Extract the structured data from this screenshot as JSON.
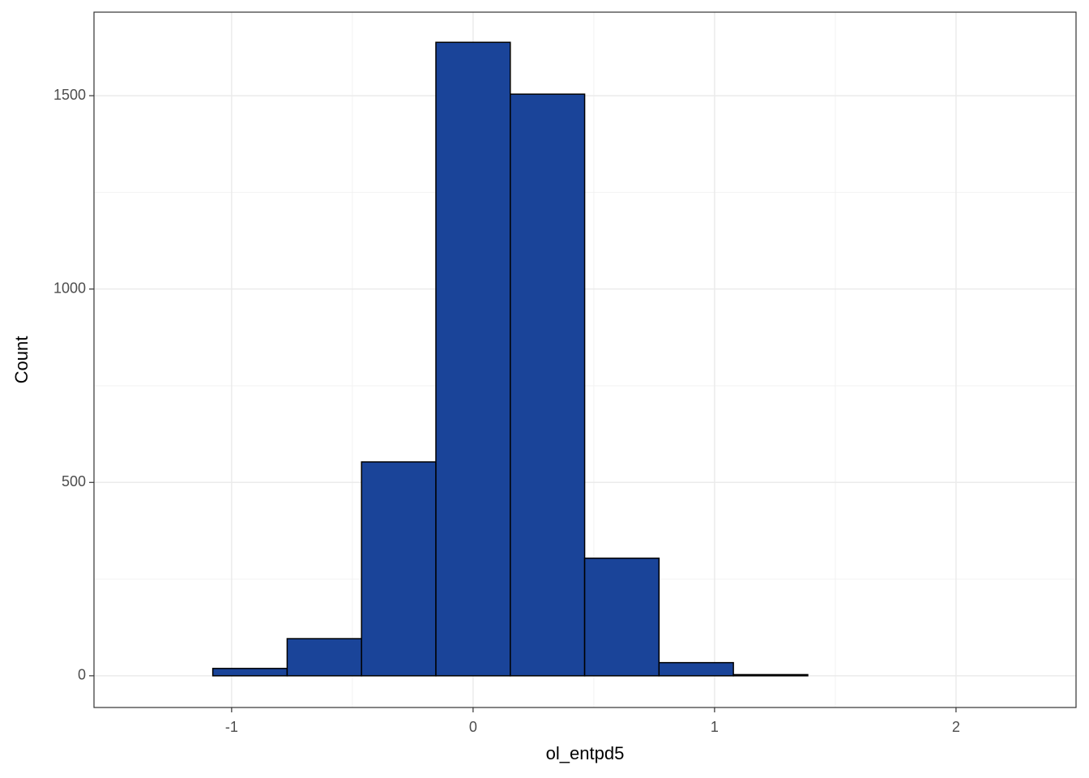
{
  "chart_data": {
    "type": "histogram",
    "x_label": "ol_entpd5",
    "y_label": "Count",
    "bins": [
      -1.386,
      -1.078,
      -0.77,
      -0.462,
      -0.154,
      0.154,
      0.462,
      0.77,
      1.078,
      1.386,
      1.694,
      2.002,
      2.31
    ],
    "values": [
      0,
      19,
      96,
      553,
      1638,
      1504,
      304,
      34,
      3,
      0,
      0,
      0
    ],
    "color": "#1a4499",
    "edge_color": "#000000",
    "xlim": [
      -1.57,
      2.497
    ],
    "ylim": [
      -82,
      1716
    ],
    "xticks": [
      -1,
      0,
      1,
      2
    ],
    "yticks": [
      0,
      500,
      1000,
      1500
    ],
    "xminor": [
      -0.5,
      0.5,
      1.5
    ],
    "yminor": [
      250,
      750,
      1250
    ],
    "grid": true
  }
}
